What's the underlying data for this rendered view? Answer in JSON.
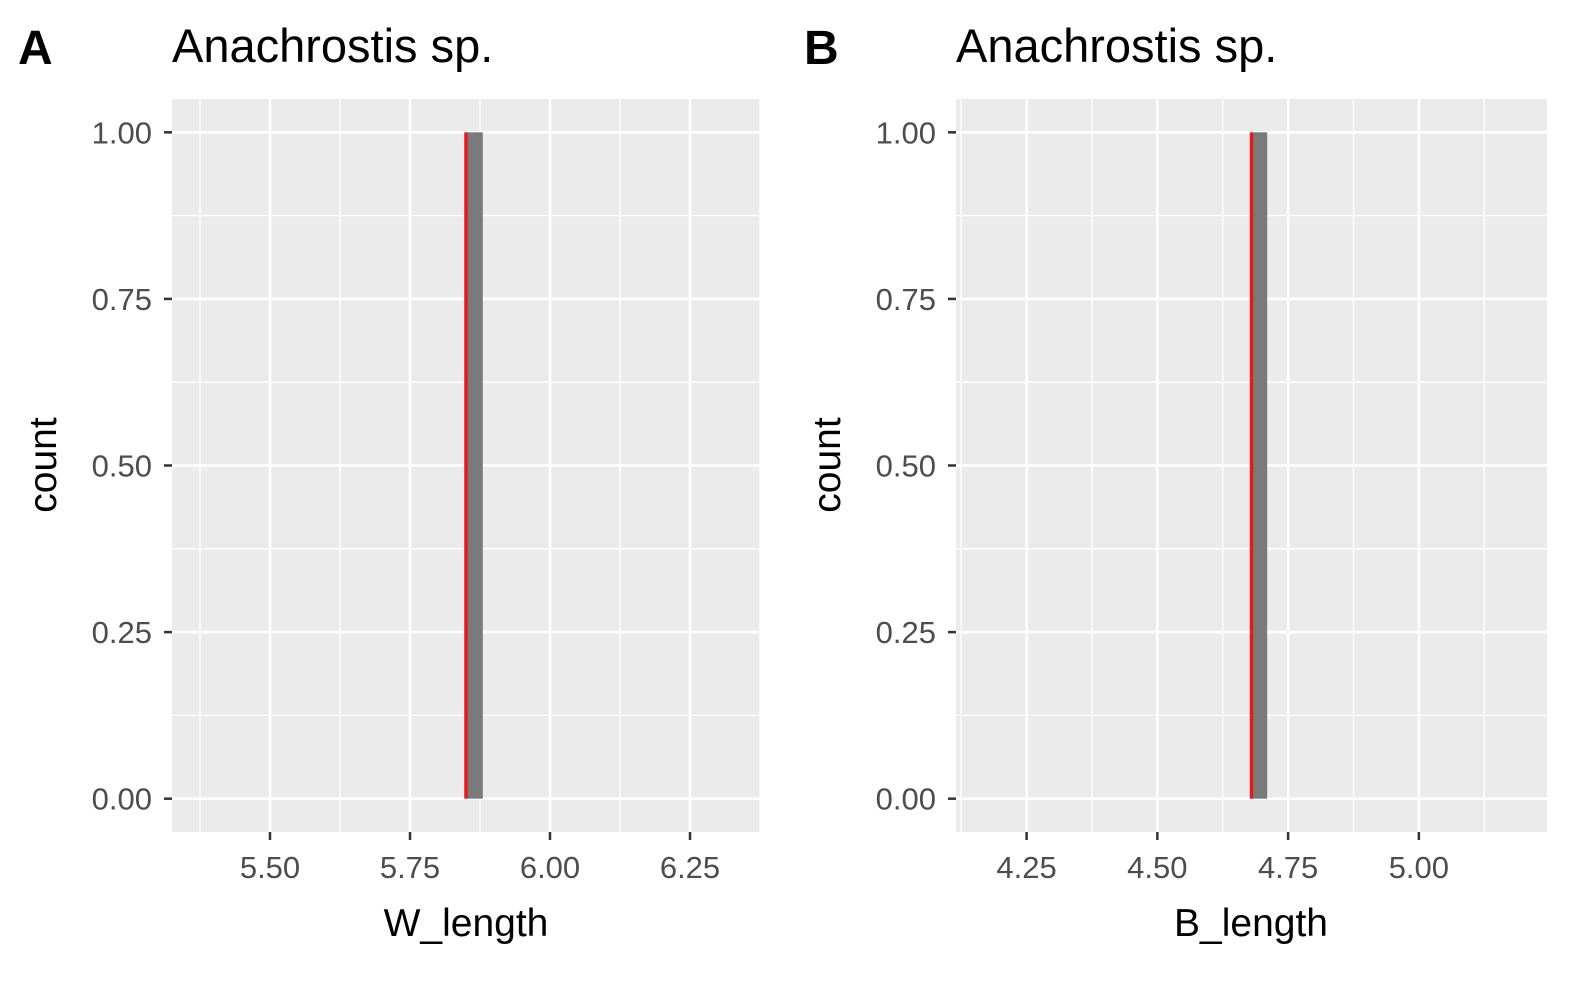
{
  "chart_data": [
    {
      "type": "bar",
      "tag": "A",
      "title": "Anachrostis sp.",
      "xlabel": "W_length",
      "ylabel": "count",
      "xlim": [
        5.325,
        6.375
      ],
      "ylim": [
        -0.05,
        1.05
      ],
      "x_ticks": [
        5.5,
        5.75,
        6.0,
        6.25
      ],
      "x_tick_labels": [
        "5.50",
        "5.75",
        "6.00",
        "6.25"
      ],
      "y_ticks": [
        0,
        0.25,
        0.5,
        0.75,
        1
      ],
      "y_tick_labels": [
        "0.00",
        "0.25",
        "0.50",
        "0.75",
        "1.00"
      ],
      "grid": true,
      "bars": [
        {
          "x_start": 5.85,
          "x_end": 5.88,
          "count": 1
        }
      ],
      "reference_line": {
        "x": 5.85,
        "color": "#e41a1c"
      },
      "bar_color": "#7a7a7a"
    },
    {
      "type": "bar",
      "tag": "B",
      "title": "Anachrostis sp.",
      "xlabel": "B_length",
      "ylabel": "count",
      "xlim": [
        4.115,
        5.245
      ],
      "ylim": [
        -0.05,
        1.05
      ],
      "x_ticks": [
        4.25,
        4.5,
        4.75,
        5.0
      ],
      "x_tick_labels": [
        "4.25",
        "4.50",
        "4.75",
        "5.00"
      ],
      "y_ticks": [
        0,
        0.25,
        0.5,
        0.75,
        1
      ],
      "y_tick_labels": [
        "0.00",
        "0.25",
        "0.50",
        "0.75",
        "1.00"
      ],
      "grid": true,
      "bars": [
        {
          "x_start": 4.68,
          "x_end": 4.71,
          "count": 1
        }
      ],
      "reference_line": {
        "x": 4.68,
        "color": "#e41a1c"
      },
      "bar_color": "#7a7a7a"
    }
  ]
}
